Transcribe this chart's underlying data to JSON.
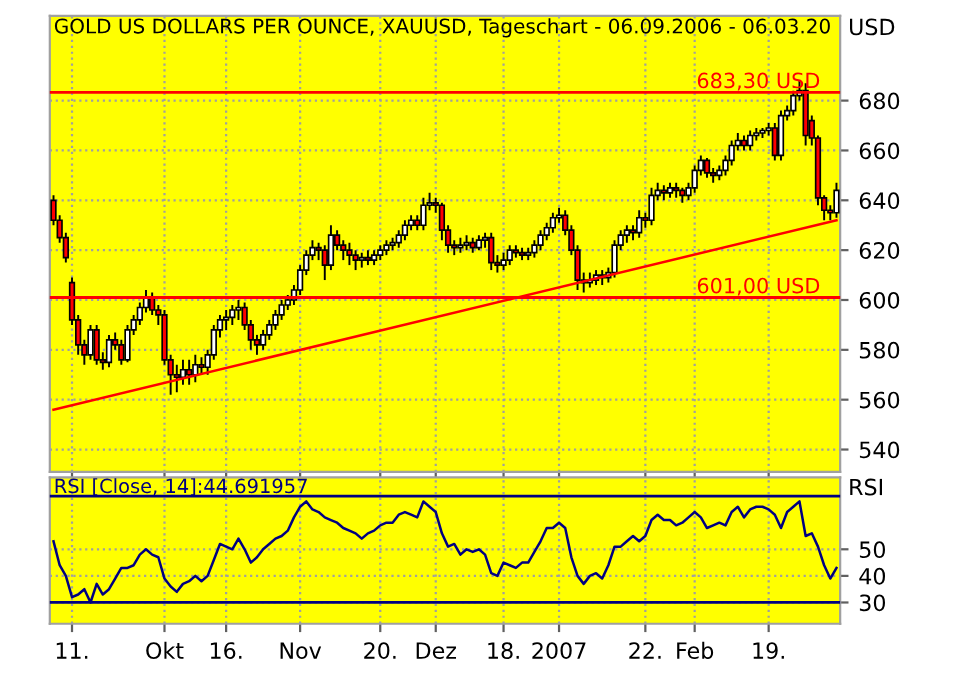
{
  "chart_data": [
    {
      "type": "candlestick",
      "title": "GOLD US DOLLARS PER OUNCE, XAUUSD, Tageschart - 06.09.2006 - 06.03.20",
      "ylabel": "USD",
      "ohlc": [
        [
          640,
          642,
          630,
          632
        ],
        [
          632,
          634,
          623,
          625
        ],
        [
          625,
          627,
          615,
          617
        ],
        [
          607,
          609,
          590,
          592
        ],
        [
          592,
          594,
          578,
          582
        ],
        [
          582,
          584,
          574,
          578
        ],
        [
          578,
          590,
          576,
          588
        ],
        [
          588,
          590,
          574,
          576
        ],
        [
          576,
          579,
          572,
          575
        ],
        [
          575,
          586,
          573,
          584
        ],
        [
          584,
          587,
          580,
          582
        ],
        [
          582,
          584,
          574,
          576
        ],
        [
          576,
          590,
          575,
          588
        ],
        [
          588,
          594,
          586,
          592
        ],
        [
          592,
          599,
          590,
          597
        ],
        [
          597,
          604,
          595,
          601
        ],
        [
          601,
          603,
          594,
          596
        ],
        [
          596,
          598,
          590,
          594
        ],
        [
          594,
          596,
          574,
          576
        ],
        [
          576,
          578,
          562,
          570
        ],
        [
          570,
          574,
          563,
          569
        ],
        [
          569,
          576,
          566,
          572
        ],
        [
          572,
          576,
          566,
          570
        ],
        [
          570,
          578,
          567,
          574
        ],
        [
          574,
          577,
          570,
          573
        ],
        [
          573,
          580,
          570,
          578
        ],
        [
          578,
          590,
          576,
          588
        ],
        [
          588,
          594,
          585,
          592
        ],
        [
          592,
          596,
          588,
          593
        ],
        [
          593,
          598,
          590,
          596
        ],
        [
          596,
          600,
          592,
          597
        ],
        [
          597,
          599,
          588,
          590
        ],
        [
          590,
          592,
          580,
          584
        ],
        [
          584,
          586,
          578,
          582
        ],
        [
          582,
          588,
          580,
          586
        ],
        [
          586,
          592,
          584,
          590
        ],
        [
          590,
          596,
          588,
          594
        ],
        [
          594,
          600,
          592,
          598
        ],
        [
          598,
          602,
          596,
          600
        ],
        [
          600,
          606,
          598,
          604
        ],
        [
          604,
          614,
          602,
          612
        ],
        [
          612,
          620,
          610,
          618
        ],
        [
          618,
          624,
          616,
          621
        ],
        [
          621,
          623,
          616,
          620
        ],
        [
          620,
          622,
          608,
          614
        ],
        [
          614,
          630,
          612,
          626
        ],
        [
          626,
          628,
          620,
          622
        ],
        [
          622,
          624,
          616,
          620
        ],
        [
          620,
          623,
          614,
          618
        ],
        [
          618,
          620,
          612,
          616
        ],
        [
          616,
          619,
          613,
          617
        ],
        [
          617,
          620,
          614,
          616
        ],
        [
          616,
          620,
          614,
          618
        ],
        [
          618,
          622,
          616,
          620
        ],
        [
          620,
          624,
          618,
          622
        ],
        [
          622,
          625,
          620,
          623
        ],
        [
          623,
          628,
          621,
          626
        ],
        [
          626,
          632,
          624,
          630
        ],
        [
          630,
          634,
          628,
          632
        ],
        [
          632,
          634,
          628,
          630
        ],
        [
          630,
          641,
          628,
          638
        ],
        [
          638,
          643,
          636,
          639
        ],
        [
          639,
          641,
          635,
          638
        ],
        [
          638,
          639,
          624,
          628
        ],
        [
          628,
          630,
          619,
          622
        ],
        [
          622,
          624,
          618,
          621
        ],
        [
          621,
          625,
          619,
          622
        ],
        [
          622,
          626,
          620,
          623
        ],
        [
          623,
          625,
          619,
          621
        ],
        [
          621,
          626,
          620,
          624
        ],
        [
          624,
          627,
          621,
          625
        ],
        [
          625,
          627,
          612,
          615
        ],
        [
          615,
          618,
          611,
          614
        ],
        [
          614,
          619,
          612,
          616
        ],
        [
          616,
          622,
          614,
          620
        ],
        [
          620,
          622,
          617,
          619
        ],
        [
          619,
          621,
          616,
          618
        ],
        [
          618,
          621,
          616,
          619
        ],
        [
          619,
          624,
          617,
          622
        ],
        [
          622,
          628,
          620,
          626
        ],
        [
          626,
          631,
          624,
          629
        ],
        [
          629,
          635,
          627,
          633
        ],
        [
          633,
          637,
          631,
          634
        ],
        [
          634,
          636,
          626,
          628
        ],
        [
          628,
          630,
          618,
          620
        ],
        [
          620,
          622,
          604,
          608
        ],
        [
          608,
          611,
          603,
          607
        ],
        [
          607,
          611,
          605,
          608
        ],
        [
          608,
          612,
          606,
          610
        ],
        [
          610,
          612,
          606,
          609
        ],
        [
          609,
          613,
          607,
          611
        ],
        [
          611,
          624,
          609,
          622
        ],
        [
          622,
          628,
          620,
          626
        ],
        [
          626,
          630,
          623,
          628
        ],
        [
          628,
          630,
          624,
          627
        ],
        [
          627,
          636,
          625,
          633
        ],
        [
          633,
          635,
          629,
          632
        ],
        [
          632,
          645,
          630,
          642
        ],
        [
          642,
          647,
          640,
          644
        ],
        [
          644,
          646,
          640,
          643
        ],
        [
          643,
          647,
          641,
          645
        ],
        [
          645,
          647,
          641,
          644
        ],
        [
          644,
          645,
          639,
          642
        ],
        [
          642,
          647,
          640,
          645
        ],
        [
          645,
          654,
          643,
          652
        ],
        [
          652,
          658,
          650,
          656
        ],
        [
          656,
          657,
          649,
          651
        ],
        [
          651,
          653,
          647,
          650
        ],
        [
          650,
          654,
          648,
          652
        ],
        [
          652,
          658,
          650,
          656
        ],
        [
          656,
          664,
          654,
          662
        ],
        [
          662,
          667,
          660,
          664
        ],
        [
          664,
          666,
          660,
          662
        ],
        [
          662,
          668,
          660,
          666
        ],
        [
          666,
          669,
          664,
          667
        ],
        [
          667,
          669,
          665,
          668
        ],
        [
          668,
          671,
          666,
          669
        ],
        [
          669,
          671,
          656,
          658
        ],
        [
          658,
          676,
          656,
          674
        ],
        [
          674,
          678,
          672,
          676
        ],
        [
          676,
          684,
          674,
          682
        ],
        [
          682,
          688,
          680,
          684
        ],
        [
          684,
          687,
          662,
          666
        ],
        [
          672,
          674,
          662,
          665
        ],
        [
          665,
          666,
          638,
          641
        ],
        [
          641,
          642,
          632,
          636
        ],
        [
          636,
          638,
          632,
          635
        ],
        [
          635,
          647,
          633,
          644
        ]
      ],
      "series": [
        {
          "type": "line",
          "color": "#ff0000",
          "values": [
            556,
            null,
            null,
            null,
            null,
            null,
            null,
            null,
            null,
            null,
            null,
            null,
            null,
            null,
            null,
            null,
            null,
            null,
            null,
            null,
            null,
            null,
            null,
            null,
            null,
            null,
            null,
            null,
            null,
            null,
            null,
            null,
            null,
            null,
            null,
            null,
            null,
            null,
            null,
            null,
            null,
            null,
            null,
            null,
            null,
            null,
            null,
            null,
            null,
            null,
            null,
            null,
            null,
            null,
            null,
            null,
            null,
            null,
            null,
            null,
            null,
            null,
            null,
            null,
            null,
            null,
            null,
            null,
            null,
            null,
            null,
            null,
            null,
            null,
            null,
            null,
            null,
            null,
            null,
            null,
            null,
            null,
            null,
            null,
            null,
            null,
            null,
            null,
            null,
            null,
            null,
            null,
            null,
            null,
            null,
            null,
            null,
            null,
            null,
            null,
            null,
            null,
            null,
            null,
            null,
            null,
            null,
            null,
            null,
            null,
            null,
            null,
            null,
            null,
            null,
            null,
            null,
            null,
            null,
            null,
            null,
            null,
            null,
            null,
            null,
            null,
            null,
            632
          ]
        }
      ],
      "ref_lines": [
        {
          "axis": "y",
          "value": 683.3,
          "label": "683,30 USD",
          "color": "#ff0000"
        },
        {
          "axis": "y",
          "value": 601,
          "label": "601,00 USD",
          "color": "#ff0000"
        }
      ],
      "ylim": [
        531,
        714
      ],
      "yticks": [
        540,
        560,
        580,
        600,
        620,
        640,
        660,
        680
      ],
      "grid": true,
      "tick_labels": "y",
      "legend": false
    },
    {
      "type": "line",
      "title": "RSI [Close, 14]:44.691957",
      "ylabel": "RSI",
      "categories": [
        null,
        null,
        null,
        "11.",
        null,
        null,
        null,
        null,
        null,
        null,
        null,
        null,
        null,
        null,
        null,
        null,
        null,
        null,
        "Okt",
        null,
        null,
        null,
        null,
        null,
        null,
        null,
        null,
        null,
        "16.",
        null,
        null,
        null,
        null,
        null,
        null,
        null,
        null,
        null,
        null,
        null,
        "Nov",
        null,
        null,
        null,
        null,
        null,
        null,
        null,
        null,
        null,
        null,
        null,
        null,
        "20.",
        null,
        null,
        null,
        null,
        null,
        null,
        null,
        null,
        "Dez",
        null,
        null,
        null,
        null,
        null,
        null,
        null,
        null,
        null,
        null,
        "18.",
        null,
        null,
        null,
        null,
        null,
        null,
        null,
        null,
        "2007",
        null,
        null,
        null,
        null,
        null,
        null,
        null,
        null,
        null,
        null,
        null,
        null,
        null,
        "22.",
        null,
        null,
        null,
        null,
        null,
        null,
        null,
        "Feb",
        null,
        null,
        null,
        null,
        null,
        null,
        null,
        null,
        null,
        null,
        null,
        "19.",
        null,
        null,
        null,
        null,
        null,
        null,
        null,
        null,
        null,
        null,
        null
      ],
      "series": [
        {
          "color": "#000080",
          "values": [
            53,
            44,
            40,
            32,
            33,
            35,
            30,
            37,
            33,
            35,
            39,
            43,
            43,
            44,
            48,
            50,
            48,
            47,
            39,
            36,
            34,
            37,
            38,
            40,
            38,
            40,
            46,
            52,
            51,
            50,
            54,
            50,
            45,
            47,
            50,
            52,
            54,
            55,
            57,
            62,
            66,
            68,
            65,
            64,
            62,
            61,
            60,
            58,
            57,
            56,
            54,
            56,
            57,
            59,
            60,
            60,
            63,
            64,
            63,
            62,
            68,
            66,
            64,
            56,
            51,
            52,
            48,
            50,
            49,
            50,
            48,
            41,
            40,
            45,
            44,
            43,
            45,
            45,
            49,
            53,
            58,
            58,
            60,
            58,
            47,
            40,
            37,
            40,
            41,
            39,
            44,
            51,
            51,
            53,
            55,
            53,
            55,
            61,
            63,
            61,
            61,
            59,
            60,
            62,
            64,
            62,
            58,
            59,
            60,
            59,
            64,
            66,
            62,
            65,
            66,
            66,
            65,
            63,
            58,
            64,
            66,
            68,
            55,
            56,
            51,
            44,
            39,
            43
          ]
        }
      ],
      "ref_lines": [
        {
          "axis": "y",
          "value": 70,
          "color": "#000080"
        },
        {
          "axis": "y",
          "value": 30,
          "color": "#000080"
        }
      ],
      "ylim": [
        22,
        77
      ],
      "yticks": [
        30,
        40,
        50
      ],
      "grid": true,
      "legend": false
    }
  ]
}
